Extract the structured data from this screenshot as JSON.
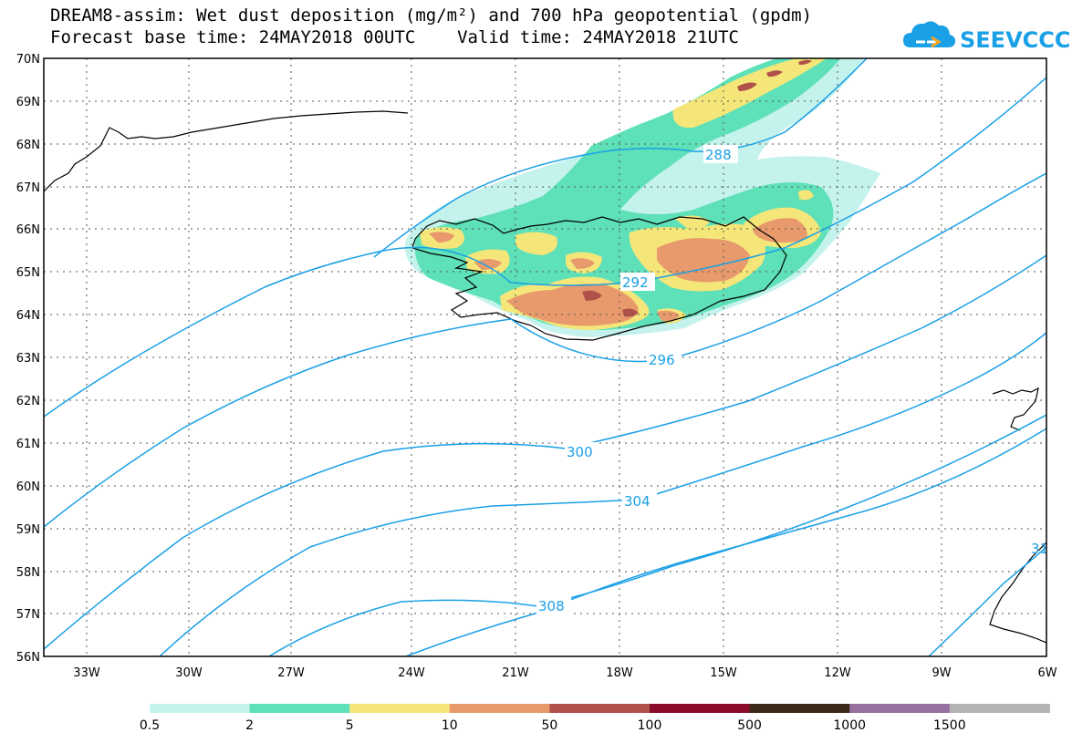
{
  "title": {
    "line1": "DREAM8-assim: Wet dust deposition (mg/m²) and 700 hPa geopotential (gpdm)",
    "line2": "Forecast base time: 24MAY2018 00UTC    Valid time: 24MAY2018 21UTC"
  },
  "logo": {
    "text": "SEEVCCC",
    "icon": "cloud-icon",
    "color": "#1aa0e6"
  },
  "map": {
    "lat_labels": [
      "70N",
      "69N",
      "68N",
      "67N",
      "66N",
      "65N",
      "64N",
      "63N",
      "62N",
      "61N",
      "60N",
      "59N",
      "58N",
      "57N",
      "56N"
    ],
    "lon_labels": [
      "33W",
      "30W",
      "27W",
      "24W",
      "21W",
      "18W",
      "15W",
      "12W",
      "9W",
      "6W"
    ],
    "contour_labels": [
      "288",
      "292",
      "296",
      "300",
      "304",
      "308",
      "31"
    ],
    "contour_color": "#1aa0e6"
  },
  "legend": {
    "colors": [
      "#c4f2ec",
      "#5ee0b8",
      "#f5e67a",
      "#e89a6c",
      "#b0524a",
      "#8a0a2a",
      "#3a2818",
      "#96709e",
      "#b4b4b4"
    ],
    "labels": [
      "0.5",
      "2",
      "5",
      "10",
      "50",
      "100",
      "500",
      "1000",
      "1500"
    ]
  }
}
